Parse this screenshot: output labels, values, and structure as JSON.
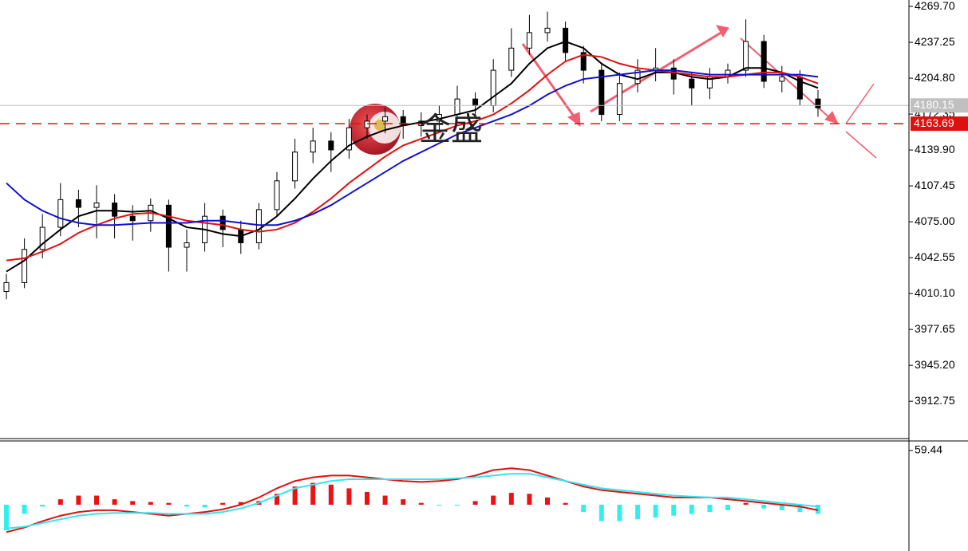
{
  "chart_data": [
    {
      "type": "candlestick",
      "open": [
        4012,
        4020,
        4050,
        4070,
        4095,
        4088,
        4092,
        4080,
        4076,
        4090,
        4052,
        4056,
        4080,
        4068,
        4056,
        4086,
        4112,
        4138,
        4148,
        4140,
        4160,
        4166,
        4170,
        4162,
        4166,
        4172,
        4186,
        4180,
        4212,
        4232,
        4246,
        4250,
        4228,
        4212,
        4172,
        4200,
        4212,
        4214,
        4204,
        4196,
        4206,
        4212,
        4238,
        4202,
        4206,
        4186
      ],
      "high": [
        4028,
        4060,
        4082,
        4110,
        4104,
        4108,
        4100,
        4090,
        4096,
        4095,
        4068,
        4092,
        4086,
        4076,
        4092,
        4120,
        4150,
        4160,
        4156,
        4168,
        4172,
        4178,
        4176,
        4174,
        4180,
        4198,
        4192,
        4222,
        4250,
        4262,
        4265,
        4256,
        4234,
        4218,
        4210,
        4222,
        4232,
        4222,
        4210,
        4214,
        4218,
        4258,
        4244,
        4216,
        4212,
        4194
      ],
      "low": [
        4005,
        4015,
        4042,
        4062,
        4070,
        4060,
        4060,
        4058,
        4066,
        4030,
        4030,
        4048,
        4052,
        4046,
        4050,
        4080,
        4105,
        4128,
        4120,
        4132,
        4150,
        4155,
        4150,
        4152,
        4158,
        4165,
        4168,
        4174,
        4206,
        4226,
        4238,
        4220,
        4200,
        4166,
        4166,
        4192,
        4202,
        4190,
        4180,
        4186,
        4200,
        4206,
        4196,
        4192,
        4180,
        4170
      ],
      "close": [
        4020,
        4050,
        4070,
        4095,
        4088,
        4092,
        4080,
        4076,
        4090,
        4052,
        4056,
        4080,
        4068,
        4056,
        4086,
        4112,
        4138,
        4148,
        4140,
        4160,
        4166,
        4170,
        4162,
        4166,
        4172,
        4186,
        4180,
        4212,
        4232,
        4246,
        4250,
        4228,
        4212,
        4172,
        4200,
        4212,
        4214,
        4204,
        4196,
        4206,
        4212,
        4238,
        4202,
        4206,
        4186,
        4178
      ],
      "series": [
        {
          "color": "#000000",
          "values": [
            4030,
            4040,
            4055,
            4068,
            4080,
            4085,
            4085,
            4084,
            4085,
            4078,
            4070,
            4068,
            4064,
            4062,
            4068,
            4080,
            4096,
            4114,
            4130,
            4144,
            4152,
            4158,
            4162,
            4165,
            4168,
            4172,
            4176,
            4188,
            4200,
            4218,
            4232,
            4238,
            4232,
            4218,
            4208,
            4204,
            4210,
            4210,
            4206,
            4204,
            4206,
            4214,
            4214,
            4210,
            4202,
            4196
          ]
        },
        {
          "color": "#e01010",
          "values": [
            4040,
            4042,
            4048,
            4055,
            4065,
            4072,
            4078,
            4082,
            4083,
            4080,
            4076,
            4074,
            4072,
            4068,
            4066,
            4068,
            4074,
            4084,
            4096,
            4110,
            4122,
            4134,
            4144,
            4150,
            4156,
            4162,
            4166,
            4172,
            4182,
            4194,
            4208,
            4220,
            4226,
            4224,
            4218,
            4214,
            4212,
            4210,
            4208,
            4206,
            4206,
            4208,
            4210,
            4210,
            4206,
            4200
          ]
        },
        {
          "color": "#1010d0",
          "values": [
            4110,
            4095,
            4085,
            4078,
            4074,
            4072,
            4072,
            4073,
            4074,
            4074,
            4074,
            4076,
            4076,
            4074,
            4072,
            4072,
            4076,
            4082,
            4090,
            4100,
            4110,
            4120,
            4130,
            4138,
            4146,
            4154,
            4160,
            4166,
            4172,
            4180,
            4190,
            4198,
            4204,
            4206,
            4208,
            4210,
            4212,
            4212,
            4210,
            4208,
            4208,
            4208,
            4208,
            4208,
            4208,
            4206
          ]
        }
      ],
      "ylim": [
        3879,
        4275.5
      ],
      "yticks": [
        {
          "value": 4269.7,
          "label": "4269.70"
        },
        4237.25,
        {
          "value": 4204.8,
          "label": "4204.80"
        },
        4172.35,
        {
          "value": 4139.9,
          "label": "4139.90"
        },
        4107.45,
        {
          "value": 4075,
          "label": "4075.00"
        },
        4042.55,
        {
          "value": 4010.1,
          "label": "4010.10"
        },
        3977.65,
        {
          "value": 3945.2,
          "label": "3945.20"
        },
        3912.75
      ],
      "price_lines": [
        {
          "value": 4180.15,
          "color": "#c0c0c0"
        },
        {
          "value": 4163.69,
          "color": "#e01010"
        }
      ],
      "annotations": [
        "金盛"
      ]
    },
    {
      "type": "bar",
      "values": [
        -28,
        -10,
        -2,
        6,
        10,
        10,
        6,
        4,
        3,
        2,
        -2,
        -3,
        2,
        3,
        4,
        12,
        20,
        24,
        22,
        18,
        14,
        10,
        6,
        2,
        -1,
        -1,
        4,
        10,
        13,
        12,
        8,
        2,
        -8,
        -18,
        -18,
        -16,
        -14,
        -12,
        -10,
        -8,
        -6,
        2,
        -4,
        -6,
        -8,
        -10
      ],
      "colors": {
        "positive": "#ee1111",
        "negative": "#33eeee"
      },
      "series": [
        {
          "color": "#e01010",
          "values": [
            -30,
            -25,
            -18,
            -12,
            -8,
            -6,
            -6,
            -8,
            -10,
            -12,
            -10,
            -8,
            -5,
            0,
            8,
            18,
            26,
            30,
            32,
            32,
            30,
            28,
            26,
            25,
            26,
            28,
            32,
            38,
            40,
            38,
            32,
            26,
            20,
            16,
            14,
            12,
            10,
            8,
            8,
            8,
            6,
            4,
            2,
            0,
            -2,
            -6
          ]
        },
        {
          "color": "#33e6ee",
          "values": [
            -26,
            -24,
            -20,
            -16,
            -12,
            -10,
            -9,
            -9,
            -9,
            -10,
            -10,
            -10,
            -8,
            -4,
            2,
            10,
            18,
            22,
            26,
            28,
            28,
            28,
            28,
            28,
            28,
            29,
            30,
            32,
            34,
            34,
            30,
            26,
            22,
            18,
            16,
            14,
            12,
            10,
            9,
            8,
            8,
            6,
            4,
            2,
            0,
            -2
          ]
        }
      ],
      "ylim": [
        -50.7,
        69.9
      ],
      "yticks": [
        59.44
      ]
    }
  ]
}
